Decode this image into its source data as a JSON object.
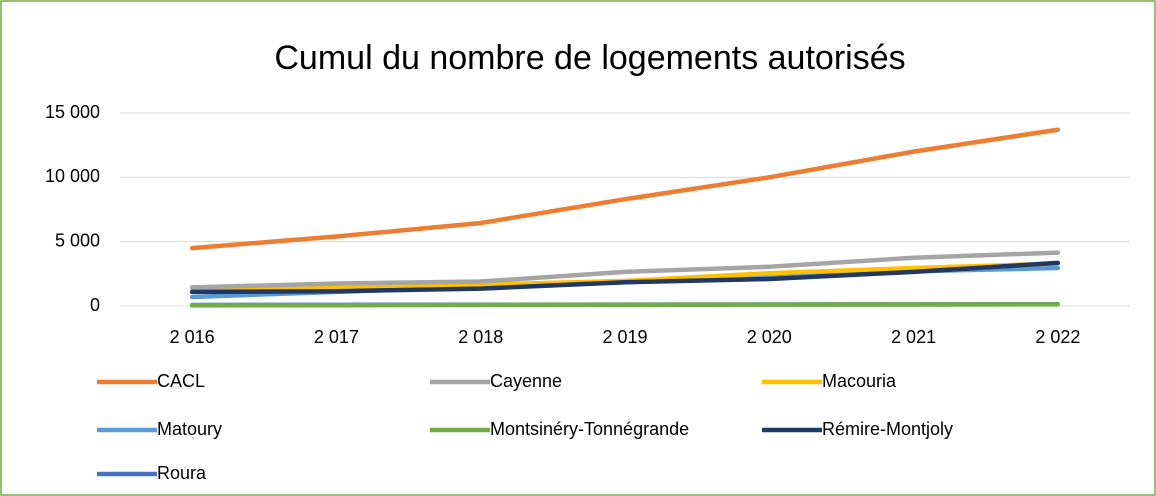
{
  "chart_data": {
    "type": "line",
    "title": "Cumul du nombre de logements autorisés",
    "categories": [
      "2 016",
      "2 017",
      "2 018",
      "2 019",
      "2 020",
      "2 021",
      "2 022"
    ],
    "series": [
      {
        "name": "CACL",
        "color": "#ed7d31",
        "values": [
          4500,
          5400,
          6450,
          8300,
          10000,
          12000,
          13700
        ]
      },
      {
        "name": "Cayenne",
        "color": "#a5a5a5",
        "values": [
          1450,
          1750,
          1900,
          2650,
          3050,
          3750,
          4150
        ]
      },
      {
        "name": "Macouria",
        "color": "#ffc000",
        "values": [
          1400,
          1500,
          1650,
          1950,
          2550,
          2950,
          3300
        ]
      },
      {
        "name": "Matoury",
        "color": "#5b9bd5",
        "values": [
          700,
          1100,
          1500,
          1850,
          2200,
          2700,
          2950
        ]
      },
      {
        "name": "Montsinéry-Tonnégrande",
        "color": "#70ad47",
        "values": [
          50,
          60,
          80,
          100,
          110,
          120,
          130
        ]
      },
      {
        "name": "Rémire-Montjoly",
        "color": "#1f3864",
        "values": [
          1100,
          1150,
          1350,
          1850,
          2100,
          2650,
          3350
        ]
      },
      {
        "name": "Roura",
        "color": "#4472c4",
        "values": [
          80,
          90,
          100,
          110,
          120,
          130,
          140
        ]
      }
    ],
    "ylim": [
      0,
      15000
    ],
    "yticks": [
      0,
      {
        "value": 5000,
        "label": "5 000"
      },
      {
        "value": 10000,
        "label": "10 000"
      },
      {
        "value": 15000,
        "label": "15 000"
      }
    ],
    "grid": true,
    "legend": "bottom"
  }
}
